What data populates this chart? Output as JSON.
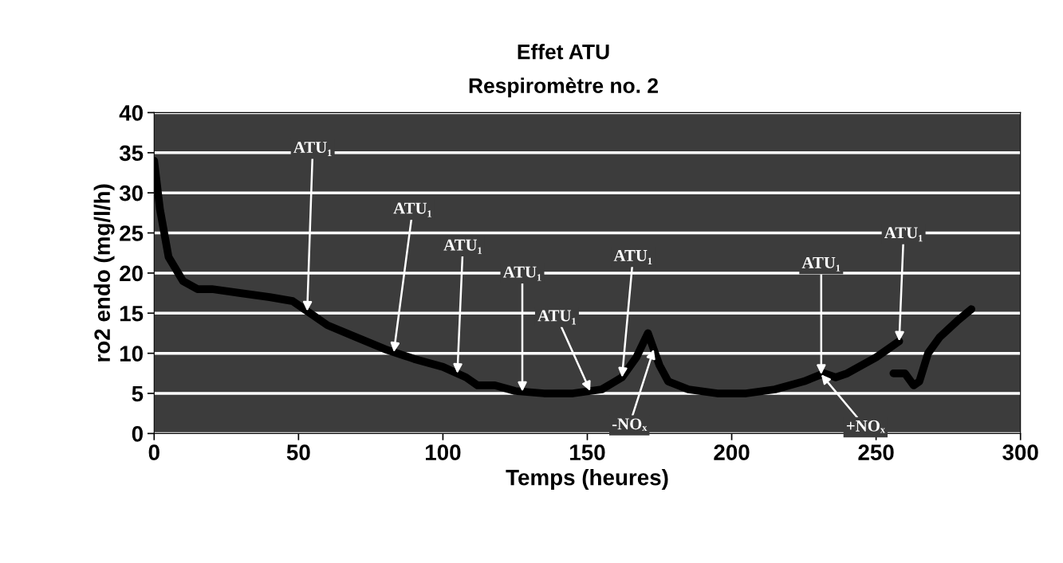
{
  "chart_data": {
    "type": "line",
    "title": "Effet ATU",
    "subtitle": "Respiromètre no. 2",
    "xlabel": "Temps (heures)",
    "ylabel": "ro2 endo (mg/l/h)",
    "series": [
      {
        "color": "#000000",
        "x": [
          0,
          2,
          5,
          10,
          15,
          20,
          30,
          40,
          48,
          52,
          60,
          70,
          80,
          90,
          100,
          108,
          112,
          118,
          125,
          135,
          145,
          155,
          162,
          167,
          171,
          173,
          175,
          178,
          185,
          195,
          205,
          215,
          225,
          232,
          236,
          240,
          250,
          258,
          null,
          256,
          260,
          263,
          265,
          268,
          272,
          278,
          283
        ],
        "values": [
          34,
          28,
          22,
          19,
          18,
          18,
          17.5,
          17,
          16.5,
          15.5,
          13.5,
          12,
          10.5,
          9.3,
          8.3,
          7,
          6,
          6,
          5.3,
          5,
          5,
          5.5,
          7,
          9.5,
          12.5,
          10.5,
          8.5,
          6.5,
          5.5,
          5,
          5,
          5.5,
          6.5,
          7.5,
          7,
          7.5,
          9.5,
          11.5,
          null,
          7.5,
          7.5,
          6,
          6.5,
          10,
          12,
          14,
          15.5
        ]
      }
    ],
    "xlim": [
      0,
      300
    ],
    "xticks": [
      0,
      50,
      100,
      150,
      200,
      250,
      300
    ],
    "ylim": [
      0,
      40
    ],
    "yticks": [
      0,
      5,
      10,
      15,
      20,
      25,
      30,
      35,
      40
    ],
    "grid": "y",
    "line_style": "solid",
    "marker": "none",
    "annotations": [
      {
        "text": "ATU₁",
        "x": 53,
        "y": 15.25
      },
      {
        "text": "ATU₁",
        "x": 83,
        "y": 10.14
      },
      {
        "text": "ATU₁",
        "x": 105,
        "y": 7.49
      },
      {
        "text": "ATU₁",
        "x": 127.5,
        "y": 5.225
      },
      {
        "text": "ATU₁",
        "x": 151,
        "y": 5.3
      },
      {
        "text": "ATU₁",
        "x": 162,
        "y": 7
      },
      {
        "text": "ATU₁",
        "x": 231,
        "y": 7.36
      },
      {
        "text": "ATU₁",
        "x": 258,
        "y": 11.5
      },
      {
        "text": "-NOₓ",
        "x": 173,
        "y": 10.5
      },
      {
        "text": "+NOₓ",
        "x": 231,
        "y": 7.36
      }
    ]
  }
}
